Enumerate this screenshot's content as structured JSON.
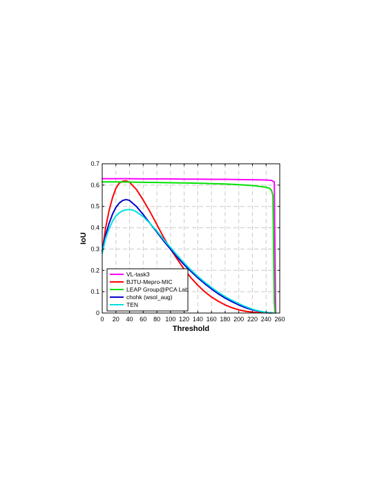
{
  "chart_data": {
    "type": "line",
    "title": "",
    "xlabel": "Threshold",
    "ylabel": "IoU",
    "xlim": [
      0,
      260
    ],
    "ylim": [
      0,
      0.7
    ],
    "xticks": [
      0,
      20,
      40,
      60,
      80,
      100,
      120,
      140,
      160,
      180,
      200,
      220,
      240,
      260
    ],
    "yticks": [
      0,
      0.1,
      0.2,
      0.3,
      0.4,
      0.5,
      0.6,
      0.7
    ],
    "ytick_labels": [
      "0",
      "0.1",
      "0.2",
      "0.3",
      "0.4",
      "0.5",
      "0.6",
      "0.7"
    ],
    "grid": true,
    "legend_position": "bottom-left",
    "series": [
      {
        "name": "VL-task3",
        "color": "#ff00ff",
        "x": [
          0,
          20,
          40,
          60,
          80,
          100,
          120,
          140,
          160,
          180,
          200,
          220,
          240,
          248,
          252,
          253,
          254
        ],
        "y": [
          0.63,
          0.63,
          0.63,
          0.629,
          0.629,
          0.629,
          0.628,
          0.628,
          0.627,
          0.627,
          0.626,
          0.625,
          0.624,
          0.622,
          0.615,
          0.3,
          0.0
        ]
      },
      {
        "name": "BJTU-Mepro-MIC",
        "color": "#ff0000",
        "x": [
          0,
          5,
          10,
          15,
          20,
          25,
          30,
          35,
          40,
          50,
          60,
          70,
          80,
          90,
          100,
          110,
          120,
          130,
          140,
          150,
          160,
          170,
          180,
          190,
          200,
          210,
          220,
          230,
          240,
          250
        ],
        "y": [
          0.29,
          0.4,
          0.48,
          0.54,
          0.585,
          0.61,
          0.618,
          0.62,
          0.613,
          0.58,
          0.53,
          0.475,
          0.415,
          0.355,
          0.3,
          0.252,
          0.205,
          0.165,
          0.13,
          0.1,
          0.075,
          0.055,
          0.038,
          0.025,
          0.015,
          0.008,
          0.004,
          0.002,
          0.001,
          0.0
        ]
      },
      {
        "name": "LEAP Group@PCA Lab",
        "color": "#00e000",
        "x": [
          0,
          20,
          40,
          60,
          80,
          100,
          120,
          140,
          160,
          180,
          200,
          220,
          240,
          245,
          248,
          250,
          251,
          252,
          253
        ],
        "y": [
          0.615,
          0.615,
          0.614,
          0.613,
          0.612,
          0.611,
          0.61,
          0.609,
          0.607,
          0.605,
          0.602,
          0.598,
          0.59,
          0.585,
          0.575,
          0.55,
          0.3,
          0.05,
          0.0
        ]
      },
      {
        "name": "chohk (wsol_aug)",
        "color": "#0000cc",
        "x": [
          0,
          5,
          10,
          15,
          20,
          25,
          30,
          35,
          40,
          50,
          60,
          70,
          80,
          90,
          100,
          110,
          120,
          130,
          140,
          150,
          160,
          170,
          180,
          190,
          200,
          210,
          220,
          230,
          240,
          250
        ],
        "y": [
          0.29,
          0.365,
          0.42,
          0.463,
          0.495,
          0.516,
          0.528,
          0.532,
          0.528,
          0.5,
          0.462,
          0.42,
          0.38,
          0.338,
          0.3,
          0.262,
          0.226,
          0.195,
          0.165,
          0.138,
          0.113,
          0.09,
          0.07,
          0.053,
          0.038,
          0.025,
          0.015,
          0.008,
          0.003,
          0.0
        ]
      },
      {
        "name": "TEN",
        "color": "#00e0e0",
        "x": [
          0,
          5,
          10,
          15,
          20,
          25,
          30,
          35,
          40,
          45,
          50,
          60,
          70,
          80,
          90,
          100,
          110,
          120,
          130,
          140,
          150,
          160,
          170,
          180,
          190,
          200,
          210,
          220,
          230,
          240,
          250
        ],
        "y": [
          0.28,
          0.35,
          0.395,
          0.43,
          0.455,
          0.47,
          0.48,
          0.484,
          0.485,
          0.483,
          0.475,
          0.452,
          0.42,
          0.385,
          0.345,
          0.308,
          0.27,
          0.235,
          0.202,
          0.172,
          0.145,
          0.12,
          0.097,
          0.077,
          0.06,
          0.044,
          0.03,
          0.018,
          0.009,
          0.003,
          0.0
        ]
      }
    ]
  }
}
